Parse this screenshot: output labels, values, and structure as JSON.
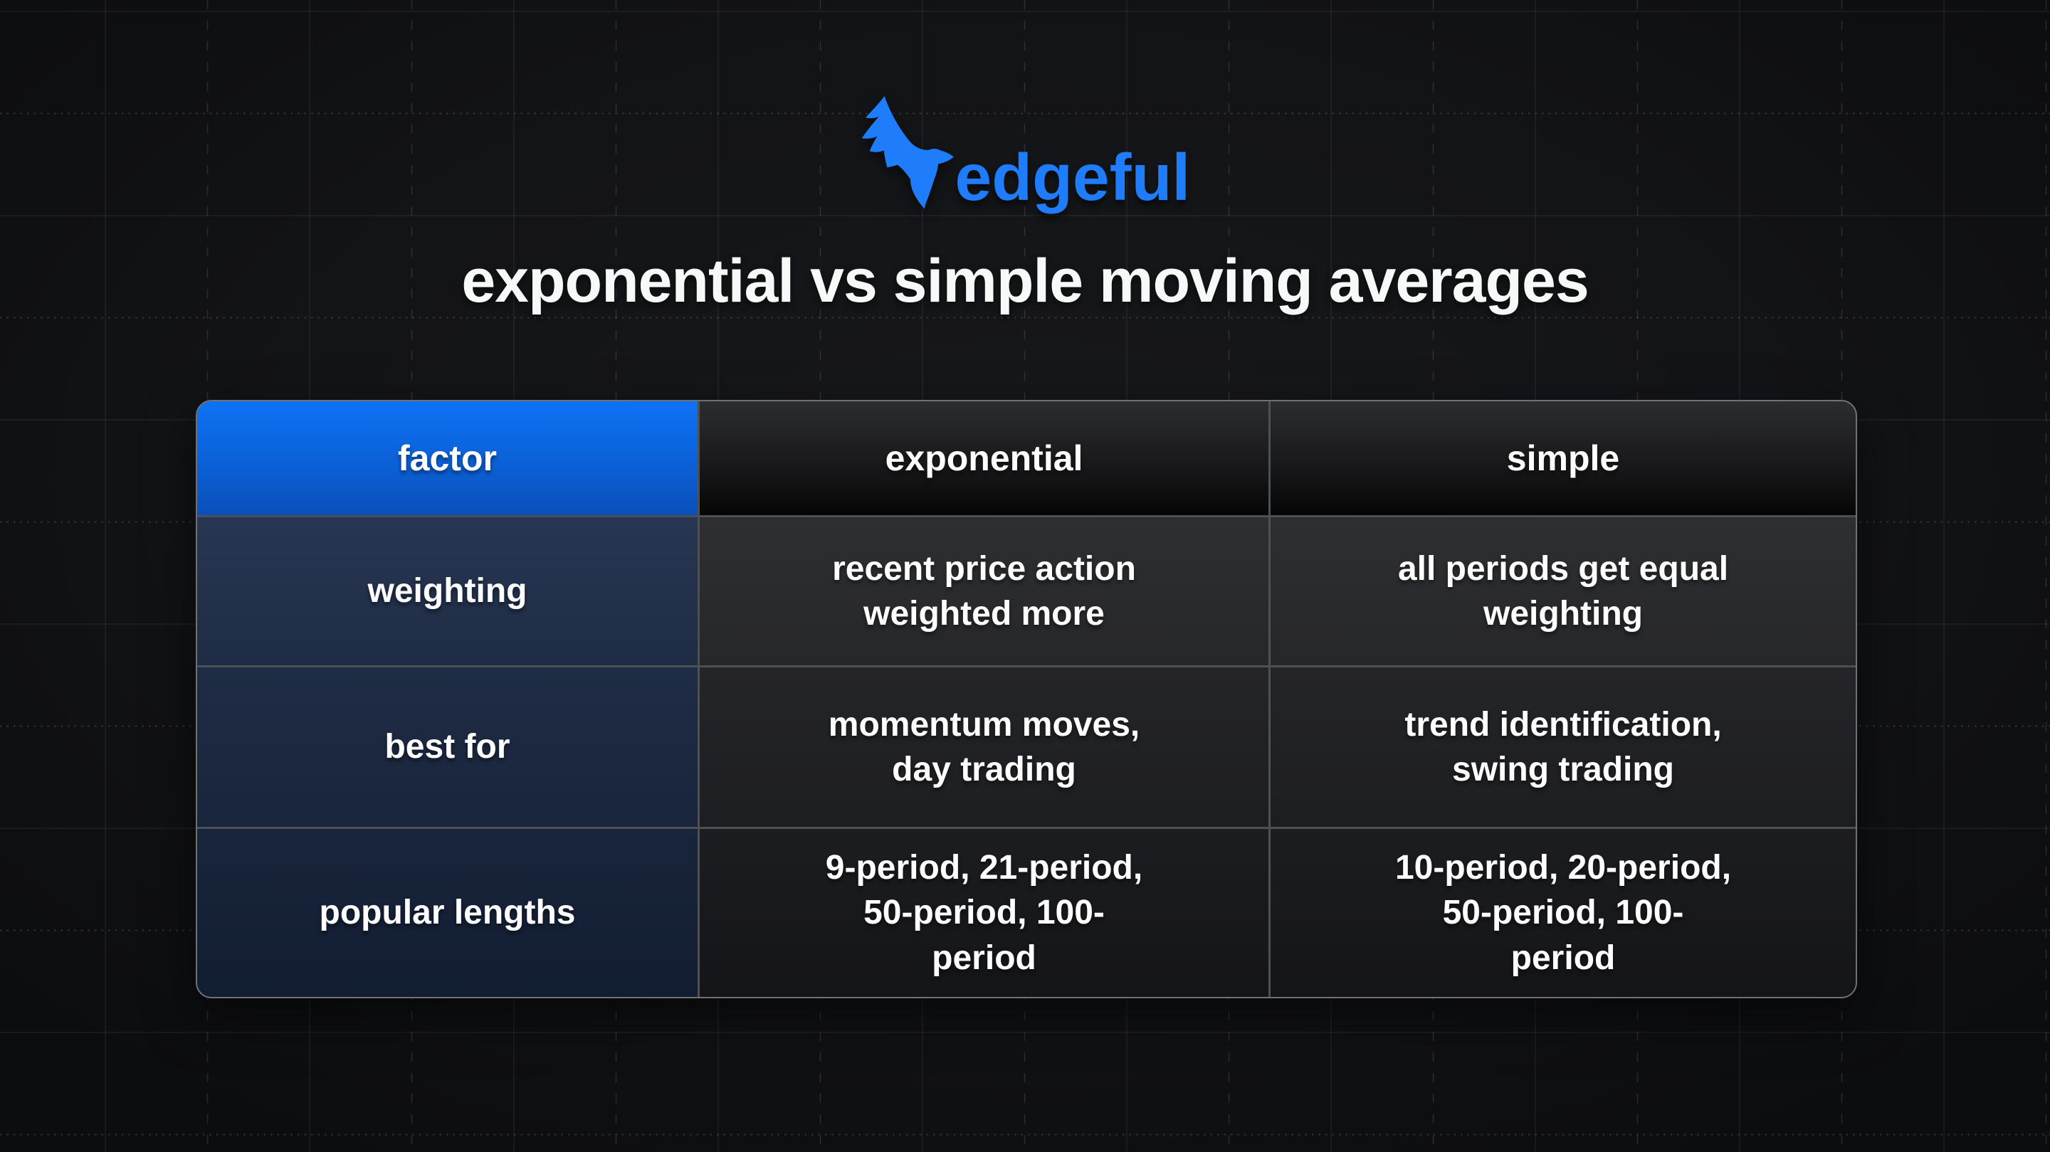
{
  "brand": {
    "name": "edgeful",
    "accent_color": "#1f7cfb"
  },
  "title": "exponential vs simple moving averages",
  "table": {
    "columns": [
      "factor",
      "exponential",
      "simple"
    ],
    "rows": [
      {
        "factor": "weighting",
        "exponential": "recent price action\nweighted more",
        "simple": "all periods get equal\nweighting"
      },
      {
        "factor": "best for",
        "exponential": "momentum moves,\nday trading",
        "simple": "trend identification,\nswing trading"
      },
      {
        "factor": "popular lengths",
        "exponential": "9-period, 21-period,\n50-period, 100-\nperiod",
        "simple": "10-period, 20-period,\n50-period, 100-\nperiod"
      }
    ]
  },
  "colors": {
    "background": "#131417",
    "factor_header_top": "#0e72f5",
    "factor_header_bottom": "#0a50ba",
    "dark_header_top": "#2c2d2f",
    "dark_header_bottom": "#060607",
    "navy_cell": "#1f2c45",
    "dark_cell": "#242528",
    "grid_separator": "#4e5154",
    "text": "#fdfdfe"
  },
  "chart_data": {
    "type": "table",
    "title": "exponential vs simple moving averages",
    "columns": [
      "factor",
      "exponential",
      "simple"
    ],
    "rows": [
      [
        "weighting",
        "recent price action weighted more",
        "all periods get equal weighting"
      ],
      [
        "best for",
        "momentum moves, day trading",
        "trend identification, swing trading"
      ],
      [
        "popular lengths",
        "9-period, 21-period, 50-period, 100-period",
        "10-period, 20-period, 50-period, 100-period"
      ]
    ]
  }
}
